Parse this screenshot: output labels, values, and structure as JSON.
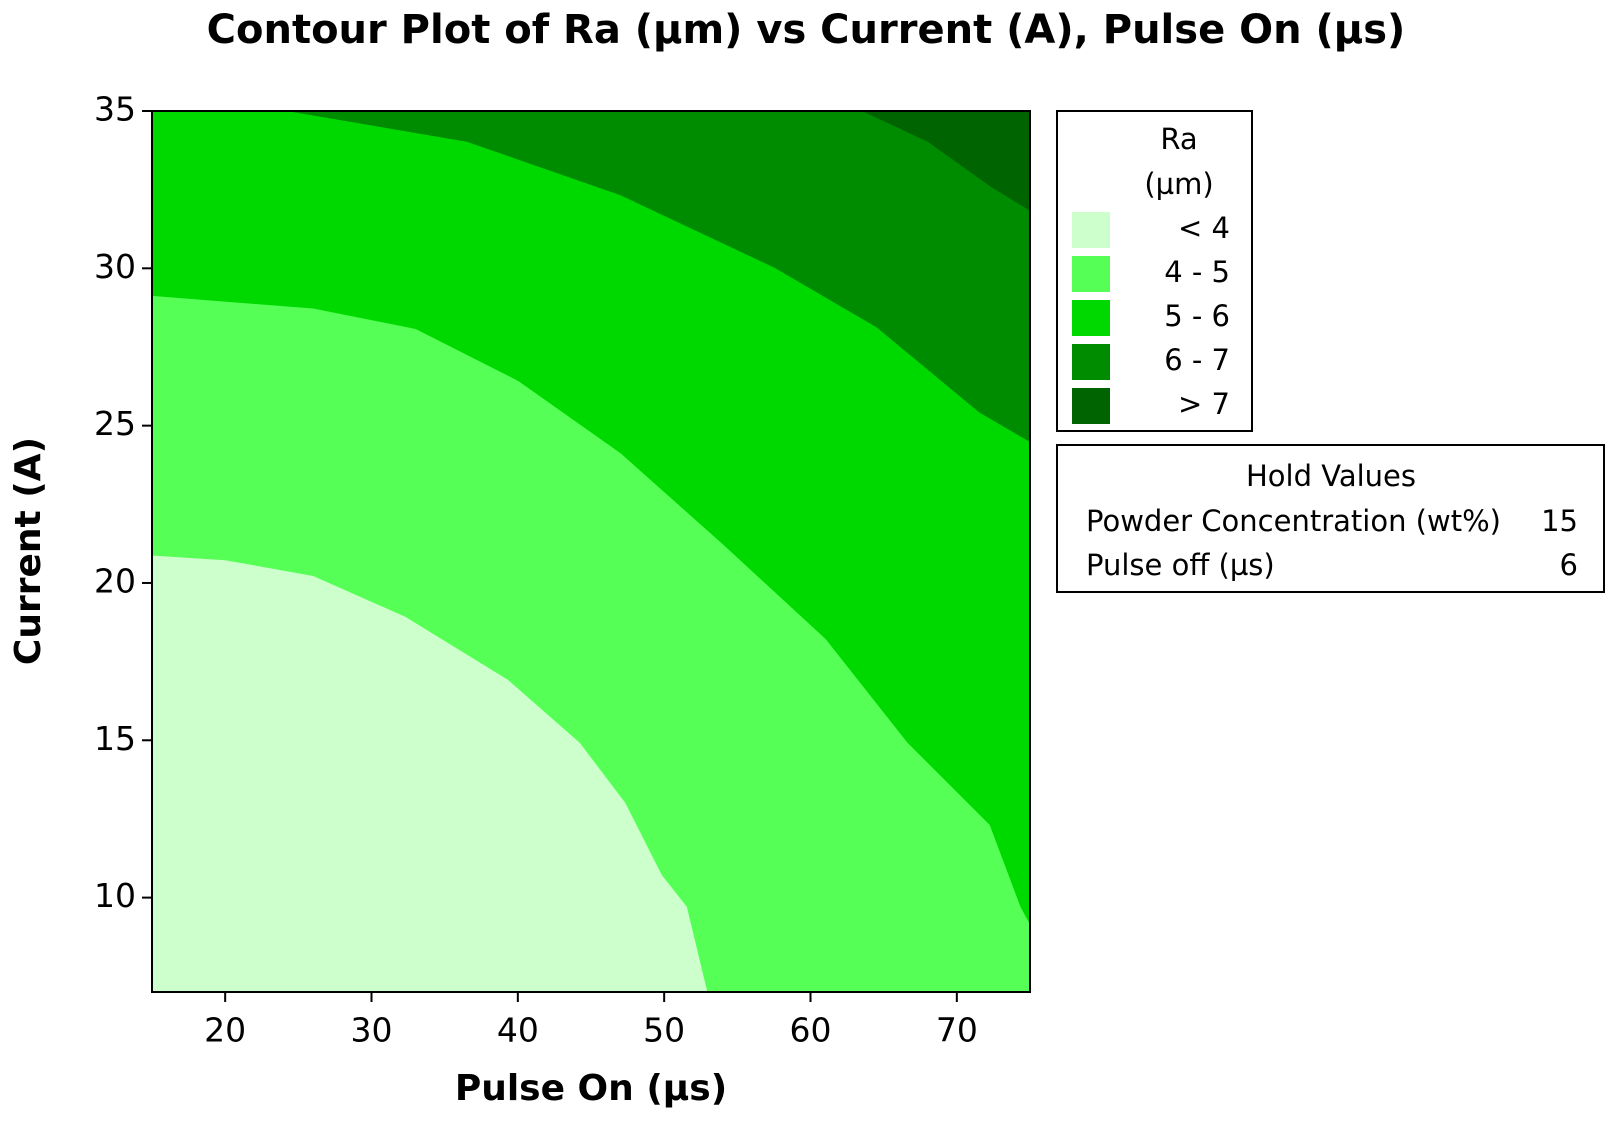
{
  "chart_data": {
    "type": "contour",
    "title": "Contour Plot of Ra (µm) vs Current (A), Pulse On (µs)",
    "x_label": "Pulse On (µs)",
    "y_label": "Current (A)",
    "xlim": [
      15,
      75
    ],
    "ylim": [
      7,
      35
    ],
    "xticks": [
      20,
      30,
      40,
      50,
      60,
      70
    ],
    "yticks": [
      10,
      15,
      20,
      25,
      30,
      35
    ],
    "legend_title": [
      "Ra",
      "(µm)"
    ],
    "bands": [
      {
        "label": "< 4",
        "color": "#ccffcc"
      },
      {
        "label": "4 - 5",
        "color": "#55ff55"
      },
      {
        "label": "5 - 6",
        "color": "#00d900"
      },
      {
        "label": "6 - 7",
        "color": "#008c00"
      },
      {
        "label": "> 7",
        "color": "#006400"
      }
    ],
    "contours": [
      {
        "x": [
          15,
          20.0,
          26.0,
          32.3,
          39.3,
          44.2,
          47.3,
          49.8,
          51.5,
          52.9
        ],
        "y": [
          20.85,
          20.7,
          20.2,
          18.9,
          16.9,
          14.9,
          13.0,
          10.7,
          9.7,
          7
        ]
      },
      {
        "x": [
          15,
          26.0,
          33.0,
          40.0,
          47.0,
          54.0,
          61.0,
          66.6,
          72.2,
          74.3,
          75
        ],
        "y": [
          29.1,
          28.7,
          28.05,
          26.4,
          24.1,
          21.2,
          18.2,
          14.9,
          12.3,
          9.7,
          9.1
        ]
      },
      {
        "x": [
          23.9,
          36.5,
          47.0,
          57.5,
          64.5,
          71.5,
          75
        ],
        "y": [
          35,
          34.0,
          32.3,
          30.0,
          28.1,
          25.4,
          24.45
        ]
      },
      {
        "x": [
          63.4,
          68.0,
          72.2,
          75
        ],
        "y": [
          35,
          34.0,
          32.6,
          31.8
        ]
      }
    ],
    "hold_values": {
      "title": "Hold Values",
      "rows": [
        {
          "name": "Powder Concentration (wt%)",
          "value": 15
        },
        {
          "name": "Pulse off (µs)",
          "value": 6
        }
      ]
    }
  }
}
